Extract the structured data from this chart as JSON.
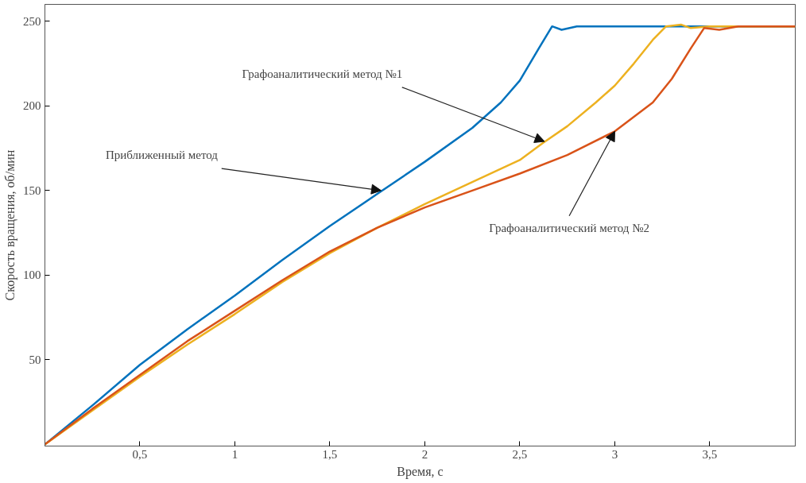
{
  "chart_data": {
    "type": "line",
    "xlabel": "Время, с",
    "ylabel": "Скорость вращения, об/мин",
    "xlim": [
      0,
      3.95
    ],
    "ylim": [
      -1,
      260
    ],
    "xticks": [
      {
        "value": 0.5,
        "label": "0,5"
      },
      1,
      {
        "value": 1.5,
        "label": "1,5"
      },
      2,
      {
        "value": 2.5,
        "label": "2,5"
      },
      3,
      {
        "value": 3.5,
        "label": "3,5"
      }
    ],
    "yticks": [
      50,
      100,
      150,
      200,
      250
    ],
    "grid": false,
    "line_style": "solid",
    "marker": "none",
    "series": [
      {
        "color": "#0072bd",
        "x": [
          0,
          0.25,
          0.5,
          0.75,
          1,
          1.25,
          1.5,
          1.75,
          2,
          2.25,
          2.4,
          2.5,
          2.6,
          2.67,
          2.72,
          2.8,
          3,
          3.95
        ],
        "values": [
          0,
          23,
          47,
          68,
          88,
          109,
          129,
          148,
          167,
          187,
          202,
          215,
          234,
          247,
          245,
          247,
          247,
          247
        ]
      },
      {
        "color": "#edb120",
        "x": [
          0,
          0.25,
          0.5,
          0.75,
          1,
          1.25,
          1.5,
          1.75,
          2,
          2.25,
          2.5,
          2.62,
          2.75,
          2.9,
          3,
          3.1,
          3.2,
          3.27,
          3.35,
          3.4,
          3.5,
          3.95
        ],
        "values": [
          0,
          20,
          40,
          59,
          77,
          96,
          113,
          128,
          142,
          155,
          168,
          178,
          188,
          202,
          212,
          225,
          239,
          247,
          248,
          246,
          247,
          247
        ]
      },
      {
        "color": "#d95319",
        "x": [
          0,
          0.25,
          0.5,
          0.75,
          1,
          1.25,
          1.5,
          1.75,
          2,
          2.25,
          2.5,
          2.75,
          3,
          3.2,
          3.3,
          3.4,
          3.47,
          3.55,
          3.65,
          3.95
        ],
        "values": [
          0,
          21,
          41,
          61,
          79,
          97,
          114,
          128,
          140,
          150,
          160,
          171,
          185,
          202,
          216,
          234,
          246,
          245,
          247,
          247
        ]
      }
    ],
    "annotations": [
      {
        "text": "Приближенный метод",
        "x": 1.77,
        "y": 150
      },
      {
        "text": "Графоаналитический метод №1",
        "x": 2.63,
        "y": 179
      },
      {
        "text": "Графоаналитический метод №2",
        "x": 3.0,
        "y": 185
      }
    ]
  }
}
